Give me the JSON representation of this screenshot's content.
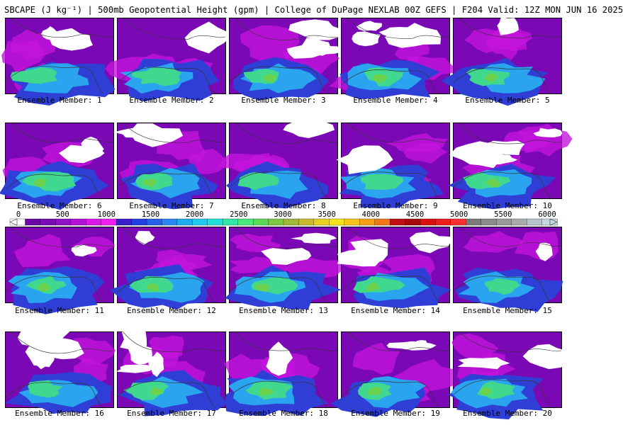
{
  "title": "SBCAPE (J kg⁻¹) | 500mb Geopotential Height (gpm) | College of DuPage NEXLAB 00Z GEFS | F204 Valid: 12Z MON JUN 16 2025",
  "caption_prefix": "Ensemble Member:",
  "members": [
    {
      "number": "1",
      "label": "Ensemble Member: 1"
    },
    {
      "number": "2",
      "label": "Ensemble Member: 2"
    },
    {
      "number": "3",
      "label": "Ensemble Member: 3"
    },
    {
      "number": "4",
      "label": "Ensemble Member: 4"
    },
    {
      "number": "5",
      "label": "Ensemble Member: 5"
    },
    {
      "number": "6",
      "label": "Ensemble Member: 6"
    },
    {
      "number": "7",
      "label": "Ensemble Member: 7"
    },
    {
      "number": "8",
      "label": "Ensemble Member: 8"
    },
    {
      "number": "9",
      "label": "Ensemble Member: 9"
    },
    {
      "number": "10",
      "label": "Ensemble Member: 10"
    },
    {
      "number": "11",
      "label": "Ensemble Member: 11"
    },
    {
      "number": "12",
      "label": "Ensemble Member: 12"
    },
    {
      "number": "13",
      "label": "Ensemble Member: 13"
    },
    {
      "number": "14",
      "label": "Ensemble Member: 14"
    },
    {
      "number": "15",
      "label": "Ensemble Member: 15"
    },
    {
      "number": "16",
      "label": "Ensemble Member: 16"
    },
    {
      "number": "17",
      "label": "Ensemble Member: 17"
    },
    {
      "number": "18",
      "label": "Ensemble Member: 18"
    },
    {
      "number": "19",
      "label": "Ensemble Member: 19"
    },
    {
      "number": "20",
      "label": "Ensemble Member: 20"
    }
  ],
  "colorbar": {
    "ticks": [
      "0",
      "500",
      "1000",
      "1500",
      "2000",
      "2500",
      "3000",
      "3500",
      "4000",
      "4500",
      "5000",
      "5500",
      "6000"
    ],
    "min": 0,
    "max": 6000,
    "colors": [
      "#ffffff",
      "#6a0aa6",
      "#7b0bb8",
      "#9010c8",
      "#b212d8",
      "#d718e6",
      "#f01cf0",
      "#3a1fc8",
      "#2040e0",
      "#2462ea",
      "#2a86f0",
      "#20aaf0",
      "#20ccee",
      "#22e0d8",
      "#30e6a8",
      "#48e87c",
      "#5cd858",
      "#7cc840",
      "#a0b838",
      "#c8b830",
      "#e8d020",
      "#f4e21c",
      "#f8c41a",
      "#f6a018",
      "#f07818",
      "#c01010",
      "#a80a0a",
      "#d81010",
      "#f01c1c",
      "#ff3030",
      "#7a7a7a",
      "#8a8a8a",
      "#9a9a9a",
      "#aaaaaa",
      "#b6c4cc",
      "#c4d8e0"
    ]
  },
  "fill_colors": {
    "background": "#7a08b5",
    "no_cape": "#ffffff",
    "low": "#c414dd",
    "mid": "#2f3fd6",
    "high": "#2aa4ef",
    "very_high": "#3fd88e",
    "peak": "#6ad24c",
    "coast": "#333333"
  }
}
